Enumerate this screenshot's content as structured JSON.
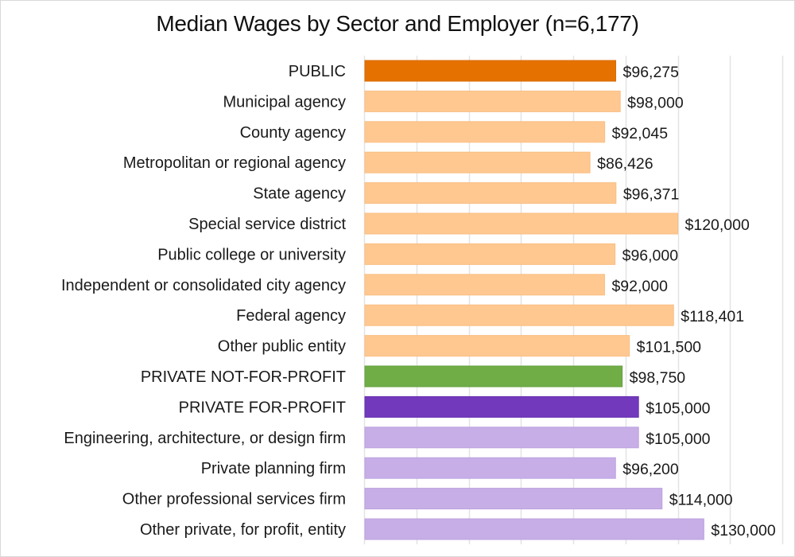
{
  "chart_data": {
    "type": "bar",
    "orientation": "horizontal",
    "title": "Median Wages by Sector and Employer (n=6,177)",
    "xlabel": "",
    "ylabel": "",
    "xlim": [
      0,
      160000
    ],
    "x_gridline_step": 20000,
    "grid": true,
    "legend": "none",
    "categories": [
      "PUBLIC",
      "Municipal agency",
      "County agency",
      "Metropolitan or regional agency",
      "State agency",
      "Special service district",
      "Public college or university",
      "Independent or consolidated city agency",
      "Federal agency",
      "Other public entity",
      "PRIVATE NOT-FOR-PROFIT",
      "PRIVATE FOR-PROFIT",
      "Engineering, architecture, or design firm",
      "Private planning firm",
      "Other professional services firm",
      "Other private, for profit, entity"
    ],
    "values": [
      96275,
      98000,
      92045,
      86426,
      96371,
      120000,
      96000,
      92000,
      118401,
      101500,
      98750,
      105000,
      105000,
      96200,
      114000,
      130000
    ],
    "data_labels": [
      "$96,275",
      "$98,000",
      "$92,045",
      "$86,426",
      "$96,371",
      "$120,000",
      "$96,000",
      "$92,000",
      "$118,401",
      "$101,500",
      "$98,750",
      "$105,000",
      "$105,000",
      "$96,200",
      "$114,000",
      "$130,000"
    ],
    "bar_colors": [
      "#E57200",
      "#FFC891",
      "#FFC891",
      "#FFC891",
      "#FFC891",
      "#FFC891",
      "#FFC891",
      "#FFC891",
      "#FFC891",
      "#FFC891",
      "#70AD47",
      "#7239BC",
      "#C7AEE6",
      "#C7AEE6",
      "#C7AEE6",
      "#C7AEE6"
    ],
    "bar_edge_colors": [
      "#D86A00",
      "#F9BE82",
      "#F9BE82",
      "#F9BE82",
      "#F9BE82",
      "#F9BE82",
      "#F9BE82",
      "#F9BE82",
      "#F9BE82",
      "#F9BE82",
      "#66A03F",
      "#6630B0",
      "#BDA2E0",
      "#BDA2E0",
      "#BDA2E0",
      "#BDA2E0"
    ],
    "gridline_color": "#e3e3e3"
  }
}
